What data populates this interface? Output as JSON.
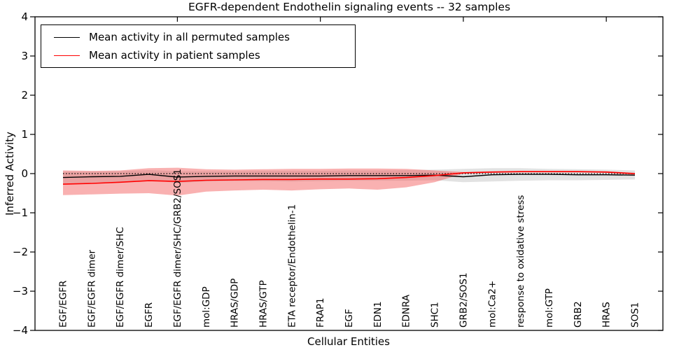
{
  "chart_data": {
    "type": "line",
    "title": "EGFR-dependent Endothelin signaling events -- 32 samples",
    "xlabel": "Cellular Entities",
    "ylabel": "Inferred Activity",
    "ylim": [
      -4,
      4
    ],
    "yticks": [
      -4,
      -3,
      -2,
      -1,
      0,
      1,
      2,
      3,
      4
    ],
    "grid": false,
    "legend_position": "upper left",
    "categories": [
      "EGF/EGFR",
      "EGF/EGFR dimer",
      "EGF/EGFR dimer/SHC",
      "EGFR",
      "EGF/EGFR dimer/SHC/GRB2/SOS1",
      "mol:GDP",
      "HRAS/GDP",
      "HRAS/GTP",
      "ETA receptor/Endothelin-1",
      "FRAP1",
      "EGF",
      "EDN1",
      "EDNRA",
      "SHC1",
      "GRB2/SOS1",
      "mol:Ca2+",
      "response to oxidative stress",
      "mol:GTP",
      "GRB2",
      "HRAS",
      "SOS1"
    ],
    "top_tick_indices": [
      4,
      9,
      14,
      19
    ],
    "zero_line": {
      "value": 0,
      "style": "dotted",
      "color": "#000000"
    },
    "series": [
      {
        "name": "Mean activity in all permuted samples",
        "color": "#000000",
        "values": [
          -0.1,
          -0.08,
          -0.07,
          -0.02,
          -0.09,
          -0.07,
          -0.06,
          -0.06,
          -0.06,
          -0.06,
          -0.05,
          -0.05,
          -0.05,
          -0.04,
          -0.08,
          -0.03,
          -0.02,
          -0.02,
          -0.03,
          -0.03,
          -0.04
        ]
      },
      {
        "name": "Mean activity in patient samples",
        "color": "#ff0000",
        "values": [
          -0.27,
          -0.25,
          -0.22,
          -0.18,
          -0.2,
          -0.17,
          -0.16,
          -0.15,
          -0.15,
          -0.14,
          -0.14,
          -0.13,
          -0.1,
          -0.05,
          0.02,
          0.04,
          0.05,
          0.05,
          0.05,
          0.04,
          0.0
        ]
      }
    ],
    "bands": [
      {
        "name": "permuted-samples-band",
        "fill": "#e2e2e2",
        "opacity": 1,
        "upper": [
          0.05,
          0.05,
          0.06,
          0.09,
          0.06,
          0.06,
          0.06,
          0.07,
          0.07,
          0.07,
          0.08,
          0.08,
          0.09,
          0.1,
          0.12,
          0.14,
          0.14,
          0.12,
          0.11,
          0.1,
          0.08
        ],
        "lower": [
          -0.25,
          -0.23,
          -0.21,
          -0.16,
          -0.24,
          -0.2,
          -0.19,
          -0.19,
          -0.2,
          -0.19,
          -0.18,
          -0.18,
          -0.18,
          -0.17,
          -0.22,
          -0.2,
          -0.18,
          -0.17,
          -0.17,
          -0.16,
          -0.15
        ]
      },
      {
        "name": "patient-samples-band",
        "fill": "#f25252",
        "opacity": 0.45,
        "upper": [
          0.08,
          0.07,
          0.08,
          0.14,
          0.15,
          0.11,
          0.1,
          0.11,
          0.12,
          0.12,
          0.13,
          0.13,
          0.12,
          0.08,
          0.04,
          0.06,
          0.07,
          0.07,
          0.07,
          0.06,
          0.02
        ],
        "lower": [
          -0.55,
          -0.53,
          -0.51,
          -0.5,
          -0.56,
          -0.46,
          -0.43,
          -0.41,
          -0.43,
          -0.4,
          -0.38,
          -0.41,
          -0.35,
          -0.22,
          0.0,
          0.02,
          0.03,
          0.03,
          0.03,
          0.02,
          -0.03
        ]
      }
    ]
  }
}
